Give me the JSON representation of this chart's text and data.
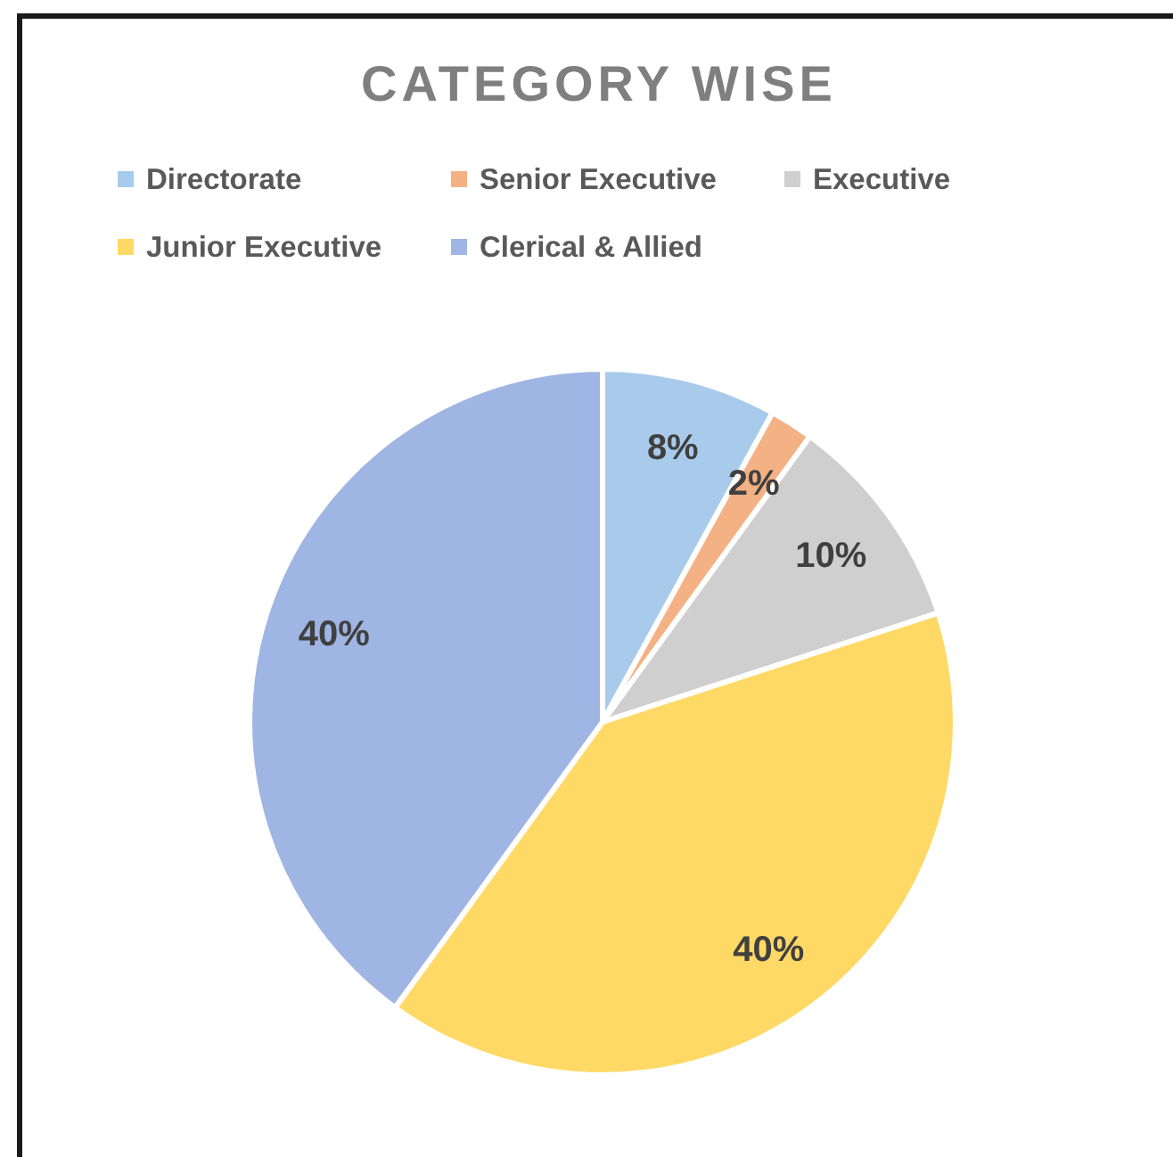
{
  "chart_data": {
    "type": "pie",
    "title": "CATEGORY WISE",
    "categories": [
      "Directorate",
      "Senior Executive",
      "Executive",
      "Junior Executive",
      "Clerical & Allied"
    ],
    "values": [
      8,
      2,
      10,
      40,
      40
    ],
    "colors": [
      "#a9cbeb",
      "#f4b183",
      "#cfcfcf",
      "#ffd965",
      "#9fb5e3"
    ],
    "value_labels": [
      "8%",
      "2%",
      "10%",
      "40%",
      "40%"
    ],
    "legend": "top"
  }
}
